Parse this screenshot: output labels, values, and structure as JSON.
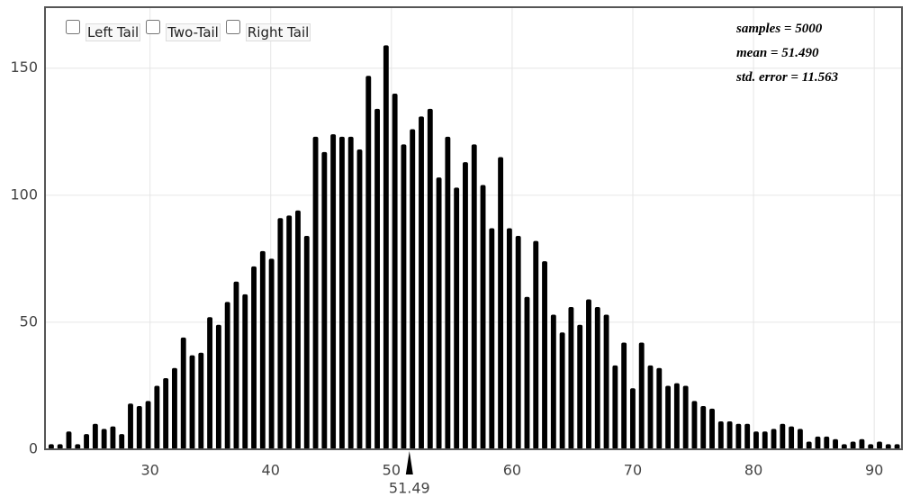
{
  "controls": [
    "Left Tail",
    "Two-Tail",
    "Right Tail"
  ],
  "chart_data": {
    "type": "histogram",
    "annotations": [
      "samples = 5000",
      "mean = 51.490",
      "std. error = 11.563"
    ],
    "marker": 51.49,
    "color": "#000000",
    "grid": true,
    "xlim": [
      21.3,
      92.3
    ],
    "ylim": [
      0,
      174
    ],
    "xticks": [
      30,
      40,
      50,
      60,
      70,
      80,
      90
    ],
    "yticks": [
      0,
      50,
      100,
      150
    ],
    "bins": [
      21.45,
      22.18,
      22.91,
      23.64,
      24.37,
      25.1,
      25.83,
      26.56,
      27.29,
      28.02,
      28.75,
      29.48,
      30.21,
      30.94,
      31.67,
      32.4,
      33.13,
      33.86,
      34.59,
      35.32,
      36.05,
      36.78,
      37.51,
      38.24,
      38.97,
      39.7,
      40.43,
      41.16,
      41.89,
      42.62,
      43.35,
      44.08,
      44.81,
      45.54,
      46.27,
      47.0,
      47.73,
      48.46,
      49.19,
      49.92,
      50.65,
      51.38,
      52.11,
      52.84,
      53.57,
      54.3,
      55.03,
      55.76,
      56.49,
      57.22,
      57.95,
      58.68,
      59.41,
      60.14,
      60.87,
      61.6,
      62.33,
      63.06,
      63.79,
      64.52,
      65.25,
      65.98,
      66.71,
      67.44,
      68.17,
      68.9,
      69.63,
      70.36,
      71.09,
      71.82,
      72.55,
      73.28,
      74.01,
      74.74,
      75.47,
      76.2,
      76.93,
      77.66,
      78.39,
      79.12,
      79.85,
      80.58,
      81.31,
      82.04,
      82.77,
      83.5,
      84.23,
      84.96,
      85.69,
      86.42,
      87.15,
      87.88,
      88.61,
      89.34,
      90.07,
      90.8,
      91.53,
      92.26
    ],
    "values": [
      2,
      2,
      7,
      2,
      6,
      10,
      8,
      9,
      6,
      18,
      17,
      19,
      25,
      28,
      32,
      44,
      37,
      38,
      52,
      49,
      58,
      66,
      61,
      72,
      78,
      75,
      91,
      92,
      94,
      84,
      123,
      117,
      124,
      123,
      123,
      118,
      147,
      134,
      159,
      140,
      120,
      126,
      131,
      134,
      107,
      123,
      103,
      113,
      120,
      104,
      87,
      115,
      87,
      84,
      60,
      82,
      74,
      53,
      46,
      56,
      49,
      59,
      56,
      53,
      33,
      42,
      24,
      42,
      33,
      32,
      25,
      26,
      25,
      19,
      17,
      16,
      11,
      11,
      10,
      10,
      7,
      7,
      8,
      10,
      9,
      8,
      3,
      5,
      5,
      4,
      2,
      3,
      4,
      2,
      3,
      2,
      2
    ]
  }
}
